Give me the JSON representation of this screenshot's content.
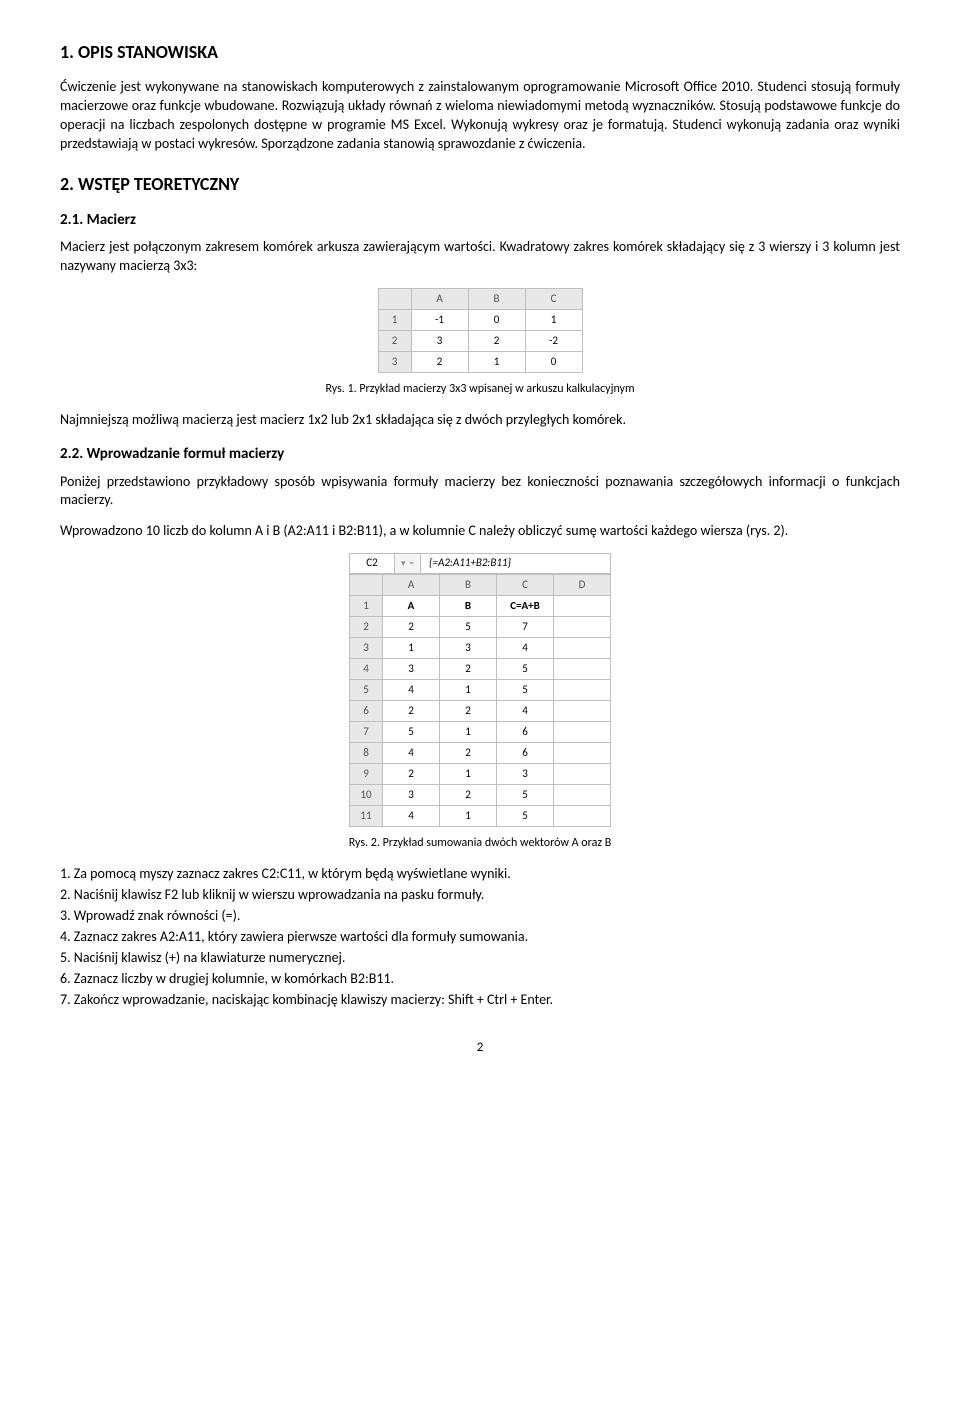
{
  "h1": "1. OPIS STANOWISKA",
  "p1": "Ćwiczenie jest wykonywane na stanowiskach komputerowych z zainstalowanym oprogramowanie Microsoft Office 2010. Studenci stosują formuły macierzowe oraz funkcje wbudowane. Rozwiązują układy równań z wieloma niewiadomymi metodą wyznaczników. Stosują podstawowe funkcje do operacji na liczbach zespolonych dostępne w programie MS Excel. Wykonują wykresy oraz je formatują. Studenci wykonują zadania oraz wyniki przedstawiają w postaci wykresów. Sporządzone zadania stanowią sprawozdanie z ćwiczenia.",
  "h2": "2. WSTĘP TEORETYCZNY",
  "h3a": "2.1. Macierz",
  "p2": "Macierz jest połączonym zakresem komórek arkusza zawierającym wartości. Kwadratowy zakres komórek składający się z 3 wierszy i 3 kolumn jest nazywany macierzą 3x3:",
  "table1": {
    "cols": [
      "A",
      "B",
      "C"
    ],
    "rows": [
      [
        "1",
        "-1",
        "0",
        "1"
      ],
      [
        "2",
        "3",
        "2",
        "-2"
      ],
      [
        "3",
        "2",
        "1",
        "0"
      ]
    ]
  },
  "cap1": "Rys. 1. Przykład macierzy 3x3 wpisanej w arkuszu kalkulacyjnym",
  "p3": "Najmniejszą możliwą macierzą jest macierz 1x2 lub 2x1 składająca się z dwóch przyległych komórek.",
  "h3b": "2.2. Wprowadzanie formuł macierzy",
  "p4": "Poniżej przedstawiono przykładowy sposób wpisywania formuły macierzy bez konieczności poznawania szczegółowych informacji o funkcjach macierzy.",
  "p5": "Wprowadzono 10 liczb do kolumn A i B (A2:A11 i B2:B11), a w kolumnie C należy obliczyć sumę wartości każdego wiersza (rys. 2).",
  "formula_bar": {
    "cell": "C2",
    "formula": "{=A2:A11+B2:B11}"
  },
  "table2": {
    "cols": [
      "A",
      "B",
      "C",
      "D"
    ],
    "header_row": [
      "1",
      "A",
      "B",
      "C=A+B",
      ""
    ],
    "rows": [
      [
        "2",
        "2",
        "5",
        "7",
        ""
      ],
      [
        "3",
        "1",
        "3",
        "4",
        ""
      ],
      [
        "4",
        "3",
        "2",
        "5",
        ""
      ],
      [
        "5",
        "4",
        "1",
        "5",
        ""
      ],
      [
        "6",
        "2",
        "2",
        "4",
        ""
      ],
      [
        "7",
        "5",
        "1",
        "6",
        ""
      ],
      [
        "8",
        "4",
        "2",
        "6",
        ""
      ],
      [
        "9",
        "2",
        "1",
        "3",
        ""
      ],
      [
        "10",
        "3",
        "2",
        "5",
        ""
      ],
      [
        "11",
        "4",
        "1",
        "5",
        ""
      ]
    ]
  },
  "cap2": "Rys. 2. Przykład sumowania dwóch wektorów A oraz B",
  "steps": [
    "1. Za pomocą myszy zaznacz zakres C2:C11, w którym będą wyświetlane wyniki.",
    "2. Naciśnij klawisz F2 lub kliknij w wierszu wprowadzania na pasku formuły.",
    "3. Wprowadź znak równości (=).",
    "4. Zaznacz zakres A2:A11, który zawiera pierwsze wartości dla formuły sumowania.",
    "5. Naciśnij klawisz (+) na klawiaturze numerycznej.",
    "6. Zaznacz liczby w drugiej kolumnie, w komórkach B2:B11.",
    "7. Zakończ wprowadzanie, naciskając kombinację klawiszy macierzy: Shift + Ctrl + Enter."
  ],
  "page": "2"
}
